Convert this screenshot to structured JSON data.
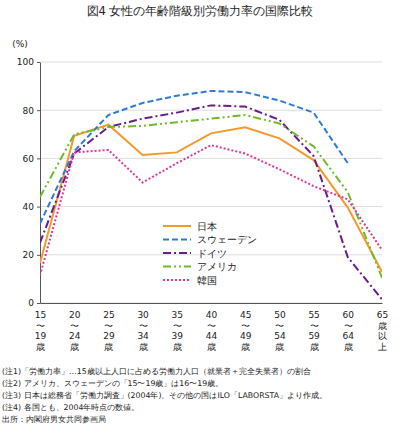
{
  "chart_data": {
    "type": "line",
    "title": "図4 女性の年齢階級別労働力率の国際比較",
    "y_label": "(%)",
    "categories": [
      "15〜19歳",
      "20〜24歳",
      "25〜29歳",
      "30〜34歳",
      "35〜39歳",
      "40〜44歳",
      "45〜49歳",
      "50〜54歳",
      "55〜59歳",
      "60〜64歳",
      "65歳以上"
    ],
    "series": [
      {
        "name": "日本",
        "color": "#f39a2b",
        "line_style": "solid",
        "values": [
          16.6,
          69.4,
          74.0,
          61.4,
          62.5,
          70.4,
          72.9,
          68.3,
          59.3,
          39.6,
          12.9
        ]
      },
      {
        "name": "スウェーデン",
        "color": "#2e7bd6",
        "line_style": "dashed",
        "values": [
          33,
          63,
          78,
          83,
          86,
          88,
          87.5,
          84,
          79,
          58,
          null
        ]
      },
      {
        "name": "ドイツ",
        "color": "#6a1b8a",
        "line_style": "dashdot",
        "values": [
          25,
          62,
          73,
          76.5,
          79,
          82,
          81.5,
          76,
          61,
          19,
          1.5
        ]
      },
      {
        "name": "アメリカ",
        "color": "#6fba2c",
        "line_style": "dashdotdot",
        "values": [
          44,
          70,
          73,
          73.5,
          75,
          76.5,
          78,
          74.5,
          65,
          46,
          10.5
        ]
      },
      {
        "name": "韓国",
        "color": "#e0359b",
        "line_style": "dotted",
        "values": [
          11.5,
          62.5,
          63.5,
          50,
          58,
          65.5,
          62,
          55.5,
          48.5,
          43,
          22
        ]
      }
    ],
    "ylim": [
      0,
      100
    ],
    "yticks": [
      0,
      20,
      40,
      60,
      80,
      100
    ],
    "grid": true,
    "legend": "lower center",
    "notes": [
      "(注1)「労働力率」…15歳以上人口に占める労働力人口（就業者＋完全失業者）の割合",
      "(注2) アメリカ、スウェーデンの「15〜19歳」は16〜19歳。",
      "(注3) 日本は総務省「労働力調査」(2004年)、その他の国はILO「LABORSTA」より作成。",
      "(注4) 各国とも、2004年時点の数値。"
    ],
    "source": "出所：内閣府男女共同参画局"
  }
}
